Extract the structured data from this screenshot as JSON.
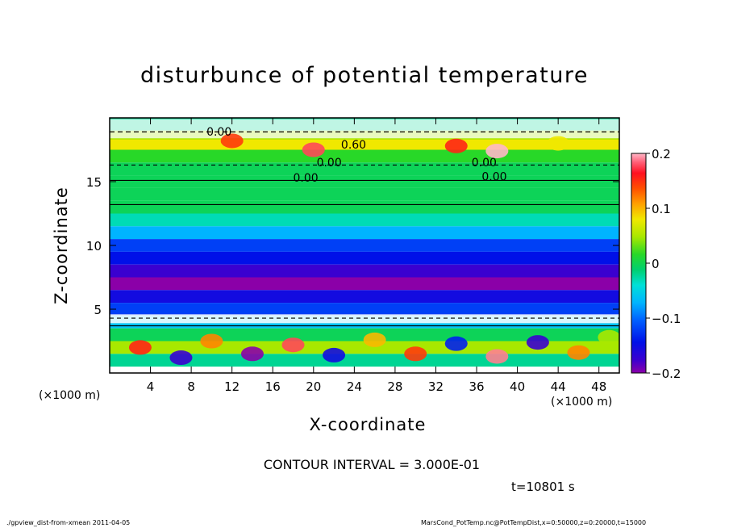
{
  "chart_data": {
    "type": "heatmap",
    "title": "disturbunce of potential temperature",
    "xlabel": "X-coordinate",
    "ylabel": "Z-coordinate",
    "x_unit": "(×1000 m)",
    "xlim": [
      0,
      50
    ],
    "ylim": [
      0,
      20
    ],
    "x_ticks": [
      4,
      8,
      12,
      16,
      20,
      24,
      28,
      32,
      36,
      40,
      44,
      48
    ],
    "y_ticks": [
      5,
      10,
      15
    ],
    "colorbar": {
      "range": [
        -0.2,
        0.2
      ],
      "ticks": [
        "0.2",
        "0.1",
        "0",
        "−0.1",
        "−0.2"
      ]
    },
    "contour_interval": "CONTOUR INTERVAL = 3.000E-01",
    "contour_labels": [
      "0.00",
      "0.60",
      "0.00",
      "0.00",
      "0.00",
      "0.00"
    ],
    "field_rows": [
      {
        "z": 19.5,
        "value": -0.02
      },
      {
        "z": 18.5,
        "value": 0.05
      },
      {
        "z": 17.8,
        "value": 0.08
      },
      {
        "z": 17.0,
        "value": 0.02
      },
      {
        "z": 16.0,
        "value": 0.0
      },
      {
        "z": 15.0,
        "value": 0.0
      },
      {
        "z": 14.0,
        "value": 0.0
      },
      {
        "z": 13.0,
        "value": 0.0
      },
      {
        "z": 12.0,
        "value": -0.03
      },
      {
        "z": 11.0,
        "value": -0.07
      },
      {
        "z": 10.0,
        "value": -0.12
      },
      {
        "z": 9.0,
        "value": -0.15
      },
      {
        "z": 8.0,
        "value": -0.18
      },
      {
        "z": 7.0,
        "value": -0.2
      },
      {
        "z": 6.0,
        "value": -0.16
      },
      {
        "z": 5.0,
        "value": -0.12
      },
      {
        "z": 4.0,
        "value": -0.06
      },
      {
        "z": 3.0,
        "value": 0.0
      },
      {
        "z": 2.0,
        "value": 0.05
      },
      {
        "z": 1.0,
        "value": -0.02
      }
    ]
  },
  "time_label": "t=10801 s",
  "footer_left": "./gpview_dist-from-xmean  2011-04-05",
  "footer_right": "MarsCond_PotTemp.nc@PotTempDist,x=0:50000,z=0:20000,t=15000"
}
